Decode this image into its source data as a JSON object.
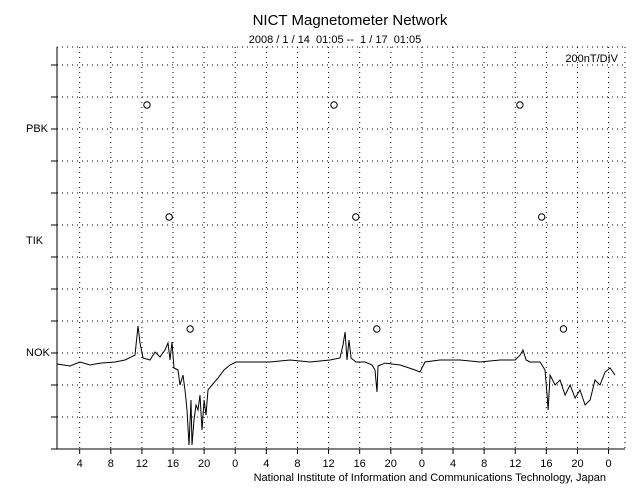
{
  "chart_data": {
    "type": "line",
    "title": "NICT Magnetometer Network",
    "subtitle": "2008 / 1 / 14  01:05 --  1 / 17  01:05",
    "scale_label": "200nT/DIV",
    "footer": "National Institute of Information and Communications Technology, Japan",
    "xlim": [
      1.083,
      73.083
    ],
    "xticks": [
      4,
      8,
      12,
      16,
      20,
      {
        "value": 24,
        "label": "0"
      },
      {
        "value": 28,
        "label": "4"
      },
      {
        "value": 32,
        "label": "8"
      },
      {
        "value": 36,
        "label": "12"
      },
      {
        "value": 40,
        "label": "16"
      },
      {
        "value": 44,
        "label": "20"
      },
      {
        "value": 48,
        "label": "0"
      },
      {
        "value": 52,
        "label": "4"
      },
      {
        "value": 56,
        "label": "8"
      },
      {
        "value": 60,
        "label": "12"
      },
      {
        "value": 64,
        "label": "16"
      },
      {
        "value": 68,
        "label": "20"
      },
      {
        "value": 72,
        "label": "0"
      }
    ],
    "ylim": [
      -600,
      1900
    ],
    "yticks": [
      {
        "value": 1400,
        "label": "PBK"
      },
      {
        "value": 700,
        "label": "TIK"
      },
      {
        "value": 0,
        "label": "NOK"
      }
    ],
    "ygrid": [
      -600,
      -400,
      -200,
      0,
      200,
      400,
      600,
      800,
      1000,
      1200,
      1400,
      1600,
      1800
    ],
    "grid": true,
    "series": [
      {
        "name": "NOK",
        "color": "#000000",
        "x": [
          1.08,
          2.75,
          4.04,
          5.32,
          6.61,
          8.54,
          9.83,
          11.11,
          11.5,
          11.75,
          12.14,
          13.04,
          13.68,
          14.33,
          14.97,
          15.35,
          15.61,
          15.87,
          16.13,
          16.64,
          16.9,
          17.28,
          17.54,
          17.8,
          18.06,
          18.31,
          18.44,
          18.7,
          18.96,
          19.21,
          19.47,
          19.73,
          19.99,
          20.24,
          20.5,
          21.01,
          21.78,
          22.56,
          23.33,
          24.1,
          25.9,
          28.47,
          31.04,
          33.62,
          36.19,
          37.47,
          37.86,
          38.12,
          38.37,
          38.63,
          38.89,
          39.53,
          40.69,
          41.59,
          41.97,
          42.23,
          42.36,
          43.26,
          45.19,
          47.12,
          47.76,
          48.4,
          50.33,
          52.9,
          55.47,
          58.05,
          59.98,
          60.62,
          61.0,
          61.39,
          61.9,
          63.19,
          63.83,
          64.09,
          64.22,
          64.48,
          65.12,
          65.76,
          66.41,
          67.05,
          67.69,
          68.33,
          68.98,
          69.62,
          70.26,
          70.9,
          71.55,
          72.19,
          72.83
        ],
        "values": [
          -69,
          -81,
          -56,
          -75,
          -63,
          -56,
          -44,
          -13,
          169,
          63,
          -31,
          -44,
          6,
          -25,
          19,
          63,
          -44,
          69,
          -94,
          -106,
          -200,
          -138,
          -231,
          -356,
          -575,
          -294,
          -575,
          -419,
          -325,
          -356,
          -263,
          -481,
          -294,
          -388,
          -231,
          -200,
          -156,
          -106,
          -75,
          -56,
          -56,
          -56,
          -44,
          -56,
          -44,
          -31,
          50,
          131,
          -44,
          81,
          -31,
          -56,
          -56,
          -75,
          -106,
          -244,
          -81,
          -63,
          -75,
          -106,
          -119,
          -56,
          -44,
          -44,
          -56,
          -44,
          -44,
          -13,
          19,
          -44,
          -56,
          -56,
          -106,
          -263,
          -356,
          -138,
          -200,
          -169,
          -263,
          -200,
          -281,
          -231,
          -325,
          -294,
          -169,
          -200,
          -119,
          -94,
          -138
        ]
      }
    ],
    "markers": [
      {
        "name": "PBK",
        "x": [
          12.65,
          36.7,
          60.6
        ],
        "values": [
          1550,
          1550,
          1550
        ]
      },
      {
        "name": "TIK",
        "x": [
          15.5,
          39.5,
          63.4
        ],
        "values": [
          850,
          850,
          850
        ]
      },
      {
        "name": "NOK",
        "x": [
          18.2,
          42.2,
          66.2
        ],
        "values": [
          150,
          150,
          150
        ]
      }
    ]
  }
}
